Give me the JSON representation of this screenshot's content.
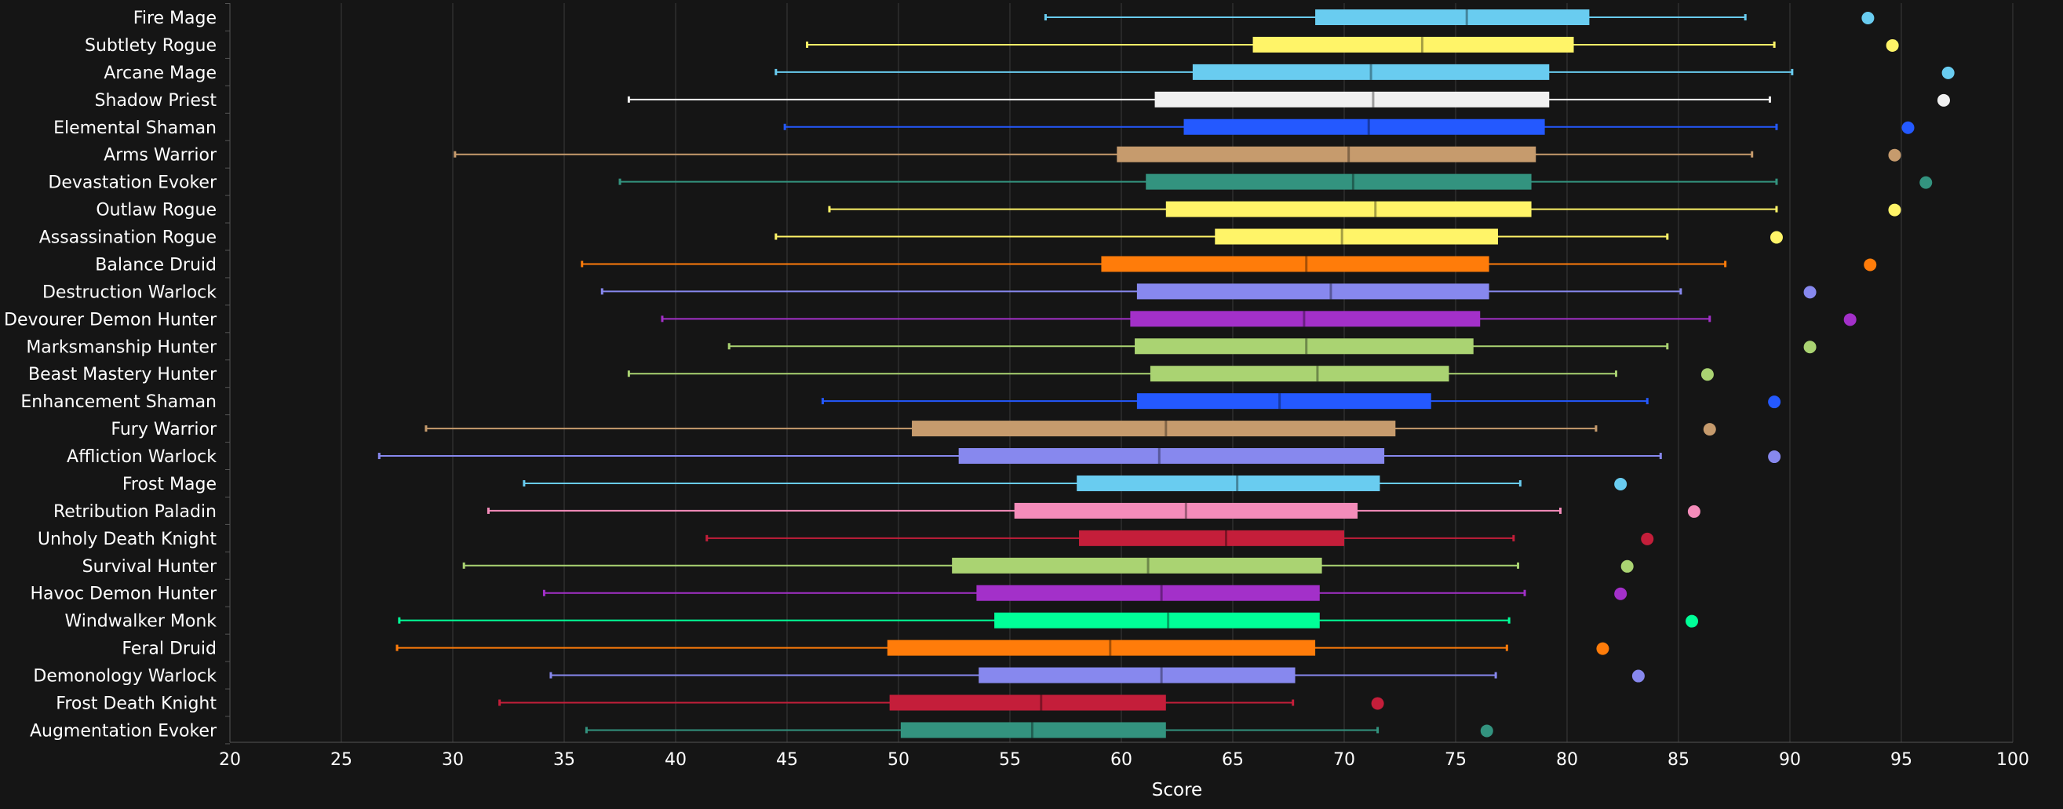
{
  "chart_data": {
    "type": "box",
    "title": "",
    "xlabel": "Score",
    "ylabel": "",
    "xlim": [
      20,
      100
    ],
    "xticks": [
      20,
      25,
      30,
      35,
      40,
      45,
      50,
      55,
      60,
      65,
      70,
      75,
      80,
      85,
      90,
      95,
      100
    ],
    "grid": true,
    "legend": "none",
    "colors": {
      "background": "#151515",
      "grid": "#3a3a3a",
      "text": "#ffffff"
    },
    "rows": [
      {
        "name": "Fire Mage",
        "color": "#69ccf0",
        "min": 56.6,
        "q1": 68.7,
        "median": 75.5,
        "q3": 81.0,
        "max": 88.0,
        "point": 93.5
      },
      {
        "name": "Subtlety Rogue",
        "color": "#fff468",
        "min": 45.9,
        "q1": 65.9,
        "median": 73.5,
        "q3": 80.3,
        "max": 89.3,
        "point": 94.6
      },
      {
        "name": "Arcane Mage",
        "color": "#69ccf0",
        "min": 44.5,
        "q1": 63.2,
        "median": 71.2,
        "q3": 79.2,
        "max": 90.1,
        "point": 97.1
      },
      {
        "name": "Shadow Priest",
        "color": "#f0f0f0",
        "min": 37.9,
        "q1": 61.5,
        "median": 71.3,
        "q3": 79.2,
        "max": 89.1,
        "point": 96.9
      },
      {
        "name": "Elemental Shaman",
        "color": "#2459ff",
        "min": 44.9,
        "q1": 62.8,
        "median": 71.1,
        "q3": 79.0,
        "max": 89.4,
        "point": 95.3
      },
      {
        "name": "Arms Warrior",
        "color": "#c69b6d",
        "min": 30.1,
        "q1": 59.8,
        "median": 70.2,
        "q3": 78.6,
        "max": 88.3,
        "point": 94.7
      },
      {
        "name": "Devastation Evoker",
        "color": "#33937f",
        "min": 37.5,
        "q1": 61.1,
        "median": 70.4,
        "q3": 78.4,
        "max": 89.4,
        "point": 96.1
      },
      {
        "name": "Outlaw Rogue",
        "color": "#fff468",
        "min": 46.9,
        "q1": 62.0,
        "median": 71.4,
        "q3": 78.4,
        "max": 89.4,
        "point": 94.7
      },
      {
        "name": "Assassination Rogue",
        "color": "#fff468",
        "min": 44.5,
        "q1": 64.2,
        "median": 69.9,
        "q3": 76.9,
        "max": 84.5,
        "point": 89.4
      },
      {
        "name": "Balance Druid",
        "color": "#ff7c0a",
        "min": 35.8,
        "q1": 59.1,
        "median": 68.3,
        "q3": 76.5,
        "max": 87.1,
        "point": 93.6
      },
      {
        "name": "Destruction Warlock",
        "color": "#8788ee",
        "min": 36.7,
        "q1": 60.7,
        "median": 69.4,
        "q3": 76.5,
        "max": 85.1,
        "point": 90.9
      },
      {
        "name": "Devourer Demon Hunter",
        "color": "#a330c9",
        "min": 39.4,
        "q1": 60.4,
        "median": 68.2,
        "q3": 76.1,
        "max": 86.4,
        "point": 92.7
      },
      {
        "name": "Marksmanship Hunter",
        "color": "#aad372",
        "min": 42.4,
        "q1": 60.6,
        "median": 68.3,
        "q3": 75.8,
        "max": 84.5,
        "point": 90.9
      },
      {
        "name": "Beast Mastery Hunter",
        "color": "#aad372",
        "min": 37.9,
        "q1": 61.3,
        "median": 68.8,
        "q3": 74.7,
        "max": 82.2,
        "point": 86.3
      },
      {
        "name": "Enhancement Shaman",
        "color": "#2459ff",
        "min": 46.6,
        "q1": 60.7,
        "median": 67.1,
        "q3": 73.9,
        "max": 83.6,
        "point": 89.3
      },
      {
        "name": "Fury Warrior",
        "color": "#c69b6d",
        "min": 28.8,
        "q1": 50.6,
        "median": 62.0,
        "q3": 72.3,
        "max": 81.3,
        "point": 86.4
      },
      {
        "name": "Affliction Warlock",
        "color": "#8788ee",
        "min": 26.7,
        "q1": 52.7,
        "median": 61.7,
        "q3": 71.8,
        "max": 84.2,
        "point": 89.3
      },
      {
        "name": "Frost Mage",
        "color": "#69ccf0",
        "min": 33.2,
        "q1": 58.0,
        "median": 65.2,
        "q3": 71.6,
        "max": 77.9,
        "point": 82.4
      },
      {
        "name": "Retribution Paladin",
        "color": "#f48cba",
        "min": 31.6,
        "q1": 55.2,
        "median": 62.9,
        "q3": 70.6,
        "max": 79.7,
        "point": 85.7
      },
      {
        "name": "Unholy Death Knight",
        "color": "#c41e3a",
        "min": 41.4,
        "q1": 58.1,
        "median": 64.7,
        "q3": 70.0,
        "max": 77.6,
        "point": 83.6
      },
      {
        "name": "Survival Hunter",
        "color": "#aad372",
        "min": 30.5,
        "q1": 52.4,
        "median": 61.2,
        "q3": 69.0,
        "max": 77.8,
        "point": 82.7
      },
      {
        "name": "Havoc Demon Hunter",
        "color": "#a330c9",
        "min": 34.1,
        "q1": 53.5,
        "median": 61.8,
        "q3": 68.9,
        "max": 78.1,
        "point": 82.4
      },
      {
        "name": "Windwalker Monk",
        "color": "#00ff98",
        "min": 27.6,
        "q1": 54.3,
        "median": 62.1,
        "q3": 68.9,
        "max": 77.4,
        "point": 85.6
      },
      {
        "name": "Feral Druid",
        "color": "#ff7c0a",
        "min": 27.5,
        "q1": 49.5,
        "median": 59.5,
        "q3": 68.7,
        "max": 77.3,
        "point": 81.6
      },
      {
        "name": "Demonology Warlock",
        "color": "#8788ee",
        "min": 34.4,
        "q1": 53.6,
        "median": 61.8,
        "q3": 67.8,
        "max": 76.8,
        "point": 83.2
      },
      {
        "name": "Frost Death Knight",
        "color": "#c41e3a",
        "min": 32.1,
        "q1": 49.6,
        "median": 56.4,
        "q3": 62.0,
        "max": 67.7,
        "point": 71.5
      },
      {
        "name": "Augmentation Evoker",
        "color": "#33937f",
        "min": 36.0,
        "q1": 50.1,
        "median": 56.0,
        "q3": 62.0,
        "max": 71.5,
        "point": 76.4
      }
    ]
  }
}
